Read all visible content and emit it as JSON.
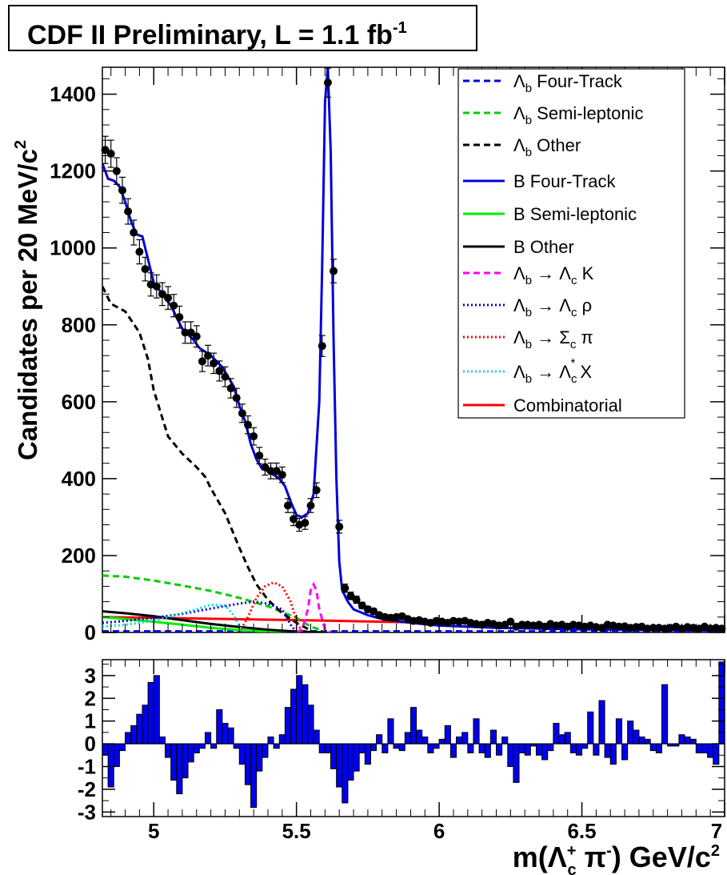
{
  "title": {
    "main": "CDF II Preliminary, L = 1.1 fb",
    "exp": "-1"
  },
  "chart_data": {
    "type": "line",
    "title": "CDF II Preliminary, L = 1.1 fb-1",
    "xlabel": "m(Λc+ π-) GeV/c2",
    "ylabel": "Candidates per 20 MeV/c2",
    "xlim": [
      4.82,
      7.0
    ],
    "ylim": [
      0,
      1470
    ],
    "x_ticks": [
      "5",
      "5.5",
      "6",
      "6.5",
      "7"
    ],
    "y_ticks": [
      "0",
      "200",
      "400",
      "600",
      "800",
      "1000",
      "1200",
      "1400"
    ],
    "legend_position": "top-right",
    "data_points": {
      "x": [
        4.83,
        4.85,
        4.87,
        4.89,
        4.91,
        4.93,
        4.95,
        4.97,
        4.99,
        5.01,
        5.03,
        5.05,
        5.07,
        5.09,
        5.11,
        5.13,
        5.15,
        5.17,
        5.19,
        5.21,
        5.23,
        5.25,
        5.27,
        5.29,
        5.31,
        5.33,
        5.35,
        5.37,
        5.39,
        5.41,
        5.43,
        5.45,
        5.47,
        5.49,
        5.51,
        5.53,
        5.55,
        5.57,
        5.59,
        5.61,
        5.63,
        5.65,
        5.67,
        5.69,
        5.71,
        5.73,
        5.75,
        5.77,
        5.79,
        5.81,
        5.83,
        5.85,
        5.87,
        5.89,
        5.91,
        5.93,
        5.95,
        5.97,
        5.99,
        6.01,
        6.03,
        6.05,
        6.07,
        6.09,
        6.11,
        6.13,
        6.15,
        6.17,
        6.19,
        6.21,
        6.23,
        6.25,
        6.27,
        6.29,
        6.31,
        6.33,
        6.35,
        6.37,
        6.39,
        6.41,
        6.43,
        6.45,
        6.47,
        6.49,
        6.51,
        6.53,
        6.55,
        6.57,
        6.59,
        6.61,
        6.63,
        6.65,
        6.67,
        6.69,
        6.71,
        6.73,
        6.75,
        6.77,
        6.79,
        6.81,
        6.83,
        6.85,
        6.87,
        6.89,
        6.91,
        6.93,
        6.95,
        6.97,
        6.99
      ],
      "y": [
        1255,
        1245,
        1200,
        1150,
        1095,
        1040,
        990,
        945,
        905,
        900,
        880,
        870,
        850,
        820,
        780,
        780,
        770,
        705,
        720,
        700,
        680,
        665,
        635,
        610,
        570,
        540,
        510,
        460,
        430,
        420,
        420,
        410,
        330,
        295,
        280,
        285,
        330,
        370,
        745,
        1430,
        940,
        275,
        115,
        95,
        85,
        70,
        60,
        55,
        45,
        40,
        38,
        40,
        42,
        35,
        30,
        32,
        28,
        25,
        30,
        28,
        25,
        30,
        28,
        30,
        25,
        22,
        20,
        25,
        22,
        18,
        20,
        28,
        15,
        20,
        20,
        18,
        20,
        15,
        22,
        18,
        20,
        15,
        20,
        18,
        15,
        18,
        14,
        12,
        20,
        18,
        15,
        16,
        12,
        14,
        15,
        10,
        12,
        12,
        10,
        12,
        15,
        10,
        14,
        12,
        10,
        15,
        10,
        12,
        10
      ]
    },
    "series": [
      {
        "name": "Λb Four-Track",
        "style": "dashed",
        "color": "#0000dd",
        "x": [
          4.82,
          5.5,
          6.0,
          7.0
        ],
        "y": [
          3,
          3,
          3,
          3
        ]
      },
      {
        "name": "Λb Semi-leptonic",
        "style": "dashed",
        "color": "#00cc00",
        "x": [
          4.82,
          4.9,
          5.0,
          5.1,
          5.2,
          5.3,
          5.4,
          5.5,
          5.55,
          5.6
        ],
        "y": [
          148,
          145,
          135,
          122,
          108,
          90,
          68,
          38,
          15,
          3
        ]
      },
      {
        "name": "Λb Other",
        "style": "dashed",
        "color": "#000000",
        "x": [
          4.82,
          4.85,
          4.9,
          4.95,
          4.98,
          5.0,
          5.05,
          5.1,
          5.15,
          5.18,
          5.2,
          5.25,
          5.3,
          5.33,
          5.36,
          5.4,
          5.45,
          5.5,
          5.55
        ],
        "y": [
          900,
          855,
          835,
          780,
          710,
          630,
          510,
          465,
          430,
          405,
          375,
          310,
          220,
          170,
          125,
          85,
          50,
          25,
          5
        ]
      },
      {
        "name": "B Four-Track",
        "style": "solid",
        "color": "#0000dd",
        "x": [
          4.82,
          4.84,
          4.86,
          4.88,
          4.9,
          4.92,
          4.94,
          4.96,
          4.98,
          5.0,
          5.02,
          5.04,
          5.06,
          5.08,
          5.1,
          5.12,
          5.14,
          5.16,
          5.18,
          5.2,
          5.22,
          5.24,
          5.26,
          5.28,
          5.3,
          5.32,
          5.34,
          5.36,
          5.38,
          5.4,
          5.42,
          5.44,
          5.46,
          5.48,
          5.5,
          5.52,
          5.54,
          5.56,
          5.58,
          5.59,
          5.6,
          5.61,
          5.62,
          5.63,
          5.64,
          5.65,
          5.66,
          5.68,
          5.7,
          5.75,
          5.8,
          5.9,
          6.0,
          6.2,
          6.5,
          7.0
        ],
        "y": [
          1220,
          1180,
          1175,
          1160,
          1120,
          1070,
          1035,
          1030,
          970,
          910,
          890,
          870,
          850,
          820,
          790,
          775,
          760,
          740,
          730,
          720,
          705,
          690,
          665,
          640,
          590,
          550,
          490,
          450,
          425,
          420,
          410,
          400,
          380,
          340,
          305,
          300,
          310,
          360,
          600,
          950,
          1380,
          1470,
          1250,
          760,
          400,
          185,
          110,
          80,
          60,
          45,
          35,
          25,
          18,
          12,
          8,
          5
        ]
      },
      {
        "name": "B Semi-leptonic",
        "style": "solid",
        "color": "#00ee00",
        "x": [
          4.82,
          4.9,
          5.0,
          5.1,
          5.2,
          5.3,
          5.4,
          5.5,
          5.6
        ],
        "y": [
          40,
          35,
          28,
          20,
          12,
          6,
          2,
          1,
          0
        ]
      },
      {
        "name": "B Other",
        "style": "solid",
        "color": "#000000",
        "x": [
          4.82,
          4.9,
          5.0,
          5.1,
          5.2,
          5.3,
          5.4,
          5.5,
          5.6
        ],
        "y": [
          55,
          50,
          42,
          32,
          22,
          14,
          7,
          2,
          0
        ]
      },
      {
        "name": "Λb → Λc K",
        "style": "dashed",
        "color": "#ff00ff",
        "x": [
          5.5,
          5.52,
          5.54,
          5.55,
          5.56,
          5.57,
          5.58,
          5.6,
          5.62
        ],
        "y": [
          0,
          8,
          60,
          110,
          125,
          110,
          60,
          8,
          0
        ]
      },
      {
        "name": "Λb → Λc ρ",
        "style": "dotted",
        "color": "#0000dd",
        "x": [
          4.82,
          4.9,
          5.0,
          5.1,
          5.2,
          5.3,
          5.35,
          5.4,
          5.45,
          5.48,
          5.5
        ],
        "y": [
          25,
          30,
          38,
          48,
          62,
          75,
          80,
          75,
          60,
          20,
          0
        ]
      },
      {
        "name": "Λb → Σc π",
        "style": "dotted",
        "color": "#ff0000",
        "x": [
          5.3,
          5.33,
          5.36,
          5.39,
          5.42,
          5.45,
          5.48,
          5.5,
          5.52
        ],
        "y": [
          0,
          40,
          90,
          120,
          130,
          120,
          80,
          30,
          0
        ]
      },
      {
        "name": "Λb → Λc* X",
        "style": "dotted",
        "color": "#00dddd",
        "x": [
          4.82,
          4.9,
          5.0,
          5.1,
          5.15,
          5.2,
          5.25,
          5.28,
          5.3,
          5.32
        ],
        "y": [
          15,
          20,
          30,
          50,
          60,
          72,
          70,
          45,
          15,
          0
        ]
      },
      {
        "name": "Combinatorial",
        "style": "solid",
        "color": "#ff0000",
        "x": [
          4.82,
          5.0,
          5.5,
          6.0,
          6.5,
          7.0
        ],
        "y": [
          40,
          38,
          32,
          25,
          18,
          12
        ]
      }
    ],
    "residuals": {
      "ylim": [
        -3.2,
        3.7
      ],
      "y_ticks": [
        "-3",
        "-2",
        "-1",
        "0",
        "1",
        "2",
        "3"
      ],
      "x": [
        4.83,
        4.85,
        4.87,
        4.89,
        4.91,
        4.93,
        4.95,
        4.97,
        4.99,
        5.01,
        5.03,
        5.05,
        5.07,
        5.09,
        5.11,
        5.13,
        5.15,
        5.17,
        5.19,
        5.21,
        5.23,
        5.25,
        5.27,
        5.29,
        5.31,
        5.33,
        5.35,
        5.37,
        5.39,
        5.41,
        5.43,
        5.45,
        5.47,
        5.49,
        5.51,
        5.53,
        5.55,
        5.57,
        5.59,
        5.61,
        5.63,
        5.65,
        5.67,
        5.69,
        5.71,
        5.73,
        5.75,
        5.77,
        5.79,
        5.81,
        5.83,
        5.85,
        5.87,
        5.89,
        5.91,
        5.93,
        5.95,
        5.97,
        5.99,
        6.01,
        6.03,
        6.05,
        6.07,
        6.09,
        6.11,
        6.13,
        6.15,
        6.17,
        6.19,
        6.21,
        6.23,
        6.25,
        6.27,
        6.29,
        6.31,
        6.33,
        6.35,
        6.37,
        6.39,
        6.41,
        6.43,
        6.45,
        6.47,
        6.49,
        6.51,
        6.53,
        6.55,
        6.57,
        6.59,
        6.61,
        6.63,
        6.65,
        6.67,
        6.69,
        6.71,
        6.73,
        6.75,
        6.77,
        6.79,
        6.81,
        6.83,
        6.85,
        6.87,
        6.89,
        6.91,
        6.93,
        6.95,
        6.97,
        6.99
      ],
      "values": [
        -0.5,
        -1.9,
        -1.0,
        -0.3,
        0.5,
        0.8,
        1.3,
        1.7,
        2.7,
        3.0,
        0.3,
        -0.6,
        -1.6,
        -2.2,
        -1.5,
        -0.8,
        -0.4,
        -0.2,
        0.5,
        -0.2,
        1.5,
        0.9,
        0.7,
        -0.2,
        -0.9,
        -1.8,
        -2.8,
        -1.2,
        -0.6,
        0.3,
        -0.2,
        0.4,
        1.6,
        2.4,
        3.0,
        2.6,
        1.7,
        0.6,
        -0.4,
        -0.4,
        -1.1,
        -1.9,
        -2.6,
        -1.6,
        -1.2,
        -0.4,
        -0.9,
        -0.3,
        0.4,
        -0.4,
        1.1,
        -0.2,
        -0.3,
        0.5,
        1.6,
        0.6,
        0.3,
        -0.4,
        -0.2,
        0.2,
        0.8,
        -0.6,
        0.3,
        0.5,
        -0.4,
        1.1,
        -0.4,
        -0.6,
        0.6,
        -0.5,
        0.3,
        -1.0,
        -1.7,
        -0.4,
        -0.5,
        -0.1,
        -0.5,
        -0.7,
        -0.3,
        0.9,
        0.4,
        0.5,
        -0.4,
        -0.5,
        -0.2,
        1.4,
        -0.5,
        1.9,
        -0.6,
        -0.9,
        1.1,
        -0.7,
        1.0,
        0.6,
        0.3,
        0.2,
        -0.3,
        -0.4,
        2.6,
        -0.1,
        -0.1,
        0.4,
        0.3,
        0.2,
        -0.4,
        -0.4,
        -0.6,
        -0.9,
        3.6
      ]
    }
  },
  "legend": [
    {
      "style": "dashed",
      "color": "#0000dd",
      "sym": "Λ",
      "sub": "b",
      "text": " Four-Track"
    },
    {
      "style": "dashed",
      "color": "#00cc00",
      "sym": "Λ",
      "sub": "b",
      "text": " Semi-leptonic"
    },
    {
      "style": "dashed",
      "color": "#000000",
      "sym": "Λ",
      "sub": "b",
      "text": " Other"
    },
    {
      "style": "solid",
      "color": "#0000dd",
      "sym": "",
      "sub": "",
      "text": "B Four-Track"
    },
    {
      "style": "solid",
      "color": "#00ee00",
      "sym": "",
      "sub": "",
      "text": "B Semi-leptonic"
    },
    {
      "style": "solid",
      "color": "#000000",
      "sym": "",
      "sub": "",
      "text": "B Other"
    },
    {
      "style": "dashed",
      "color": "#ff00ff",
      "sym": "Λ",
      "sub": "b",
      "text": " → Λ",
      "sub2": "c",
      "tail": " K"
    },
    {
      "style": "dotted",
      "color": "#0000dd",
      "sym": "Λ",
      "sub": "b",
      "text": " → Λ",
      "sub2": "c",
      "tail": " ρ"
    },
    {
      "style": "dotted",
      "color": "#ff0000",
      "sym": "Λ",
      "sub": "b",
      "text": " → Σ",
      "sub2": "c",
      "tail": " π"
    },
    {
      "style": "dotted",
      "color": "#00dddd",
      "sym": "Λ",
      "sub": "b",
      "text": " → Λ",
      "sub2": "c",
      "sup2": "*",
      "tail": " X"
    },
    {
      "style": "solid",
      "color": "#ff0000",
      "sym": "",
      "sub": "",
      "text": "Combinatorial"
    }
  ]
}
